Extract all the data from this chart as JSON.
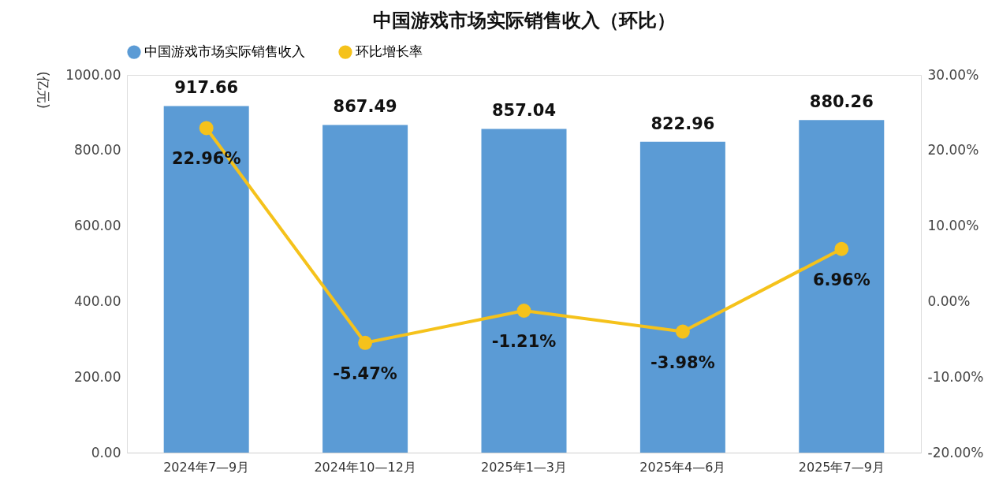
{
  "chart_data": {
    "type": "bar",
    "title": "中国游戏市场实际销售收入（环比）",
    "ylabel": "(亿元)",
    "categories": [
      "2024年7—9月",
      "2024年10—12月",
      "2025年1—3月",
      "2025年4—6月",
      "2025年7—9月"
    ],
    "series": [
      {
        "name": "中国游戏市场实际销售收入",
        "color": "#5b9bd5",
        "values": [
          917.66,
          867.49,
          857.04,
          822.96,
          880.26
        ],
        "value_labels": [
          "917.66",
          "867.49",
          "857.04",
          "822.96",
          "880.26"
        ]
      },
      {
        "name": "环比增长率",
        "type": "line",
        "axis": "y2",
        "color": "#f5c21b",
        "marker": "circle",
        "values": [
          22.96,
          -5.47,
          -1.21,
          -3.98,
          6.96
        ],
        "value_labels": [
          "22.96%",
          "-5.47%",
          "-1.21%",
          "-3.98%",
          "6.96%"
        ]
      }
    ],
    "ylim": [
      0,
      1000
    ],
    "yticks": [
      {
        "value": 0,
        "label": "0.00"
      },
      {
        "value": 200,
        "label": "200.00"
      },
      {
        "value": 400,
        "label": "400.00"
      },
      {
        "value": 600,
        "label": "600.00"
      },
      {
        "value": 800,
        "label": "800.00"
      },
      {
        "value": 1000,
        "label": "1000.00"
      }
    ],
    "y2lim": [
      -20,
      30
    ],
    "y2ticks": [
      {
        "value": -20,
        "label": "-20.00%"
      },
      {
        "value": -10,
        "label": "-10.00%"
      },
      {
        "value": 0,
        "label": "0.00%"
      },
      {
        "value": 10,
        "label": "10.00%"
      },
      {
        "value": 20,
        "label": "20.00%"
      },
      {
        "value": 30,
        "label": "30.00%"
      }
    ],
    "grid": false,
    "legend": "top"
  }
}
